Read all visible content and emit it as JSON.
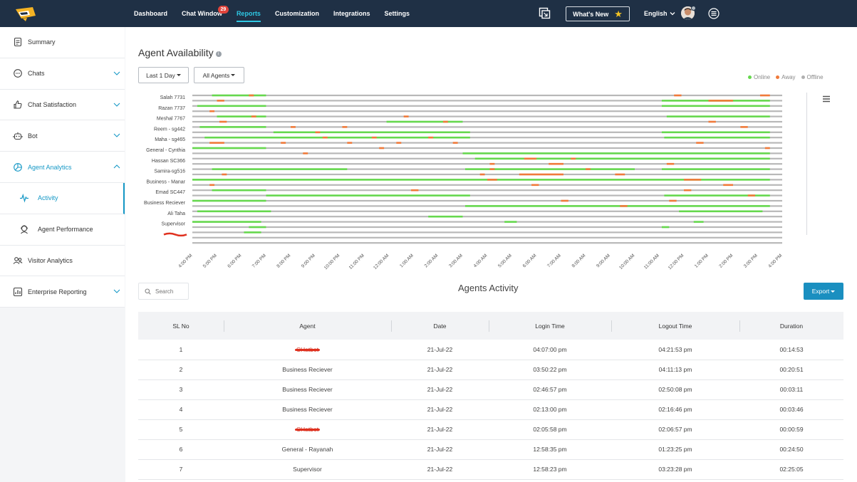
{
  "topbar": {
    "nav": [
      {
        "label": "Dashboard",
        "name": "nav-dashboard"
      },
      {
        "label": "Chat Window",
        "name": "nav-chat-window",
        "badge": "29"
      },
      {
        "label": "Reports",
        "name": "nav-reports",
        "active": true
      },
      {
        "label": "Customization",
        "name": "nav-customization"
      },
      {
        "label": "Integrations",
        "name": "nav-integrations"
      },
      {
        "label": "Settings",
        "name": "nav-settings"
      }
    ],
    "whats_new": "What's New",
    "language": "English",
    "icons": [
      "logo-icon",
      "screen-share-icon",
      "star-icon",
      "avatar",
      "menu-circle-icon"
    ]
  },
  "sidebar": {
    "items": [
      {
        "label": "Summary",
        "icon": "document-icon",
        "name": "sidebar-item-summary"
      },
      {
        "label": "Chats",
        "icon": "chat-bubble-icon",
        "name": "sidebar-item-chats",
        "expandable": true
      },
      {
        "label": "Chat Satisfaction",
        "icon": "thumbs-up-icon",
        "name": "sidebar-item-chat-satisfaction",
        "expandable": true
      },
      {
        "label": "Bot",
        "icon": "bot-icon",
        "name": "sidebar-item-bot",
        "expandable": true
      },
      {
        "label": "Agent Analytics",
        "icon": "analytics-icon",
        "name": "sidebar-item-agent-analytics",
        "expandable": true,
        "open": true
      },
      {
        "label": "Activity",
        "icon": "pulse-icon",
        "name": "sidebar-item-activity",
        "sub": true,
        "current": true
      },
      {
        "label": "Agent Performance",
        "icon": "headset-agent-icon",
        "name": "sidebar-item-agent-performance",
        "sub": true
      },
      {
        "label": "Visitor Analytics",
        "icon": "users-icon",
        "name": "sidebar-item-visitor-analytics"
      },
      {
        "label": "Enterprise Reporting",
        "icon": "report-icon",
        "name": "sidebar-item-enterprise-reporting",
        "expandable": true
      }
    ]
  },
  "main": {
    "title": "Agent Availability",
    "range_filter": "Last 1 Day",
    "agent_filter": "All Agents",
    "legend": [
      {
        "label": "Online",
        "color": "#66d84e"
      },
      {
        "label": "Away",
        "color": "#f07a3a"
      },
      {
        "label": "Offline",
        "color": "#b0b0b0"
      }
    ],
    "search_placeholder": "Search",
    "section_title": "Agents Activity",
    "export_label": "Export"
  },
  "chart_data": {
    "type": "timeline",
    "agents": [
      "Salah 7731",
      "Razan 7737",
      "Meshal 7767",
      "Reem - sg442",
      "Maha - sg465",
      "General - Cynthia",
      "Hassan SC366",
      "Samira-sg516",
      "Business - Manar",
      "Emad SC447",
      "Business Reciever",
      "Ali Taha",
      "Supervisor",
      "[redacted]"
    ],
    "time_ticks": [
      "4:00 PM",
      "5:00 PM",
      "6:00 PM",
      "7:00 PM",
      "8:00 PM",
      "9:00 PM",
      "10:00 PM",
      "11:00 PM",
      "12:00 AM",
      "1:00 AM",
      "2:00 AM",
      "3:00 AM",
      "4:00 AM",
      "5:00 AM",
      "6:00 AM",
      "7:00 AM",
      "8:00 AM",
      "9:00 AM",
      "10:00 AM",
      "11:00 AM",
      "12:00 PM",
      "1:00 PM",
      "2:00 PM",
      "3:00 PM",
      "4:00 PM"
    ],
    "colors": {
      "online": "#66d84e",
      "away": "#f07a3a",
      "offline": "#b8b8b8"
    },
    "rows": [
      [
        [
          0.8,
          3,
          "online"
        ],
        [
          1,
          1.3,
          "away"
        ],
        [
          2.3,
          2.5,
          "away"
        ],
        [
          19.1,
          23.5,
          "online"
        ],
        [
          19.6,
          19.9,
          "away"
        ],
        [
          21,
          22,
          "away"
        ],
        [
          23.1,
          23.5,
          "away"
        ]
      ],
      [
        [
          0.2,
          3,
          "online"
        ],
        [
          0.7,
          0.9,
          "away"
        ],
        [
          19.1,
          23.5,
          "online"
        ]
      ],
      [
        [
          1,
          3,
          "online"
        ],
        [
          1.1,
          1.4,
          "away"
        ],
        [
          2.4,
          2.6,
          "away"
        ],
        [
          7.9,
          11,
          "online"
        ],
        [
          8.6,
          8.8,
          "away"
        ],
        [
          10.2,
          10.4,
          "away"
        ],
        [
          19.3,
          23.5,
          "online"
        ],
        [
          21,
          21.3,
          "away"
        ]
      ],
      [
        [
          0.3,
          3,
          "online"
        ],
        [
          3.3,
          11.3,
          "online"
        ],
        [
          4,
          4.2,
          "away"
        ],
        [
          5,
          5.2,
          "away"
        ],
        [
          6.1,
          6.3,
          "away"
        ],
        [
          19.1,
          23.5,
          "online"
        ],
        [
          22.3,
          22.6,
          "away"
        ]
      ],
      [
        [
          0.5,
          3,
          "online"
        ],
        [
          0.7,
          1.3,
          "away"
        ],
        [
          3,
          11.3,
          "online"
        ],
        [
          3.6,
          3.8,
          "away"
        ],
        [
          5.3,
          5.5,
          "away"
        ],
        [
          6.3,
          6.5,
          "away"
        ],
        [
          7.3,
          7.5,
          "away"
        ],
        [
          8.3,
          8.5,
          "away"
        ],
        [
          9.6,
          9.8,
          "away"
        ],
        [
          10.6,
          10.8,
          "away"
        ],
        [
          19.2,
          23.5,
          "online"
        ],
        [
          20.5,
          20.8,
          "away"
        ]
      ],
      [
        [
          0,
          3,
          "online"
        ],
        [
          4.5,
          4.7,
          "away"
        ],
        [
          7.6,
          7.8,
          "away"
        ],
        [
          11,
          23.5,
          "online"
        ],
        [
          23.3,
          23.5,
          "away"
        ]
      ],
      [
        [
          11.5,
          23.5,
          "online"
        ],
        [
          12.1,
          12.3,
          "away"
        ],
        [
          13.5,
          14,
          "away"
        ],
        [
          14.5,
          15.1,
          "away"
        ],
        [
          15.4,
          15.6,
          "away"
        ],
        [
          19.3,
          19.6,
          "away"
        ]
      ],
      [
        [
          0.8,
          6.3,
          "online"
        ],
        [
          1.2,
          1.4,
          "away"
        ],
        [
          11.1,
          18,
          "online"
        ],
        [
          11.7,
          11.9,
          "away"
        ],
        [
          12.1,
          12.3,
          "away"
        ],
        [
          13.3,
          15.1,
          "away"
        ],
        [
          16,
          16.2,
          "away"
        ],
        [
          17.2,
          17.6,
          "away"
        ],
        [
          19.1,
          23.5,
          "online"
        ]
      ],
      [
        [
          0,
          23.5,
          "online"
        ],
        [
          0.7,
          0.9,
          "away"
        ],
        [
          12,
          12.4,
          "away"
        ],
        [
          13.8,
          14.1,
          "away"
        ],
        [
          20,
          20.7,
          "away"
        ],
        [
          21.6,
          22,
          "away"
        ]
      ],
      [
        [
          0.8,
          3,
          "online"
        ],
        [
          3,
          11.3,
          "online"
        ],
        [
          8.9,
          9.2,
          "away"
        ],
        [
          19.2,
          23.5,
          "online"
        ],
        [
          20,
          20.3,
          "away"
        ],
        [
          22.6,
          22.9,
          "away"
        ]
      ],
      [
        [
          0,
          3,
          "online"
        ],
        [
          11.1,
          23.5,
          "online"
        ],
        [
          15,
          15.3,
          "away"
        ],
        [
          17.4,
          17.7,
          "away"
        ],
        [
          19.4,
          19.7,
          "away"
        ]
      ],
      [
        [
          0.2,
          3.2,
          "online"
        ],
        [
          9.6,
          11,
          "online"
        ],
        [
          19.8,
          23.2,
          "online"
        ]
      ],
      [
        [
          0,
          2.8,
          "online"
        ],
        [
          2.3,
          3,
          "online"
        ],
        [
          12.7,
          13.2,
          "online"
        ],
        [
          19.1,
          19.4,
          "online"
        ],
        [
          20.4,
          20.8,
          "online"
        ]
      ],
      [
        [
          2.1,
          2.8,
          "online"
        ],
        [
          0,
          0,
          "online"
        ]
      ]
    ]
  },
  "table": {
    "columns": [
      "SL No",
      "Agent",
      "Date",
      "Login Time",
      "Logout Time",
      "Duration"
    ],
    "rows": [
      {
        "sl": "1",
        "agent": "CHatbot",
        "redacted": true,
        "date": "21-Jul-22",
        "login": "04:07:00 pm",
        "logout": "04:21:53 pm",
        "duration": "00:14:53"
      },
      {
        "sl": "2",
        "agent": "Business Reciever",
        "date": "21-Jul-22",
        "login": "03:50:22 pm",
        "logout": "04:11:13 pm",
        "duration": "00:20:51"
      },
      {
        "sl": "3",
        "agent": "Business Reciever",
        "date": "21-Jul-22",
        "login": "02:46:57 pm",
        "logout": "02:50:08 pm",
        "duration": "00:03:11"
      },
      {
        "sl": "4",
        "agent": "Business Reciever",
        "date": "21-Jul-22",
        "login": "02:13:00 pm",
        "logout": "02:16:46 pm",
        "duration": "00:03:46"
      },
      {
        "sl": "5",
        "agent": "CHatbot",
        "redacted": true,
        "date": "21-Jul-22",
        "login": "02:05:58 pm",
        "logout": "02:06:57 pm",
        "duration": "00:00:59"
      },
      {
        "sl": "6",
        "agent": "General - Rayanah",
        "date": "21-Jul-22",
        "login": "12:58:35 pm",
        "logout": "01:23:25 pm",
        "duration": "00:24:50"
      },
      {
        "sl": "7",
        "agent": "Supervisor",
        "date": "21-Jul-22",
        "login": "12:58:23 pm",
        "logout": "03:23:28 pm",
        "duration": "02:25:05"
      }
    ]
  }
}
